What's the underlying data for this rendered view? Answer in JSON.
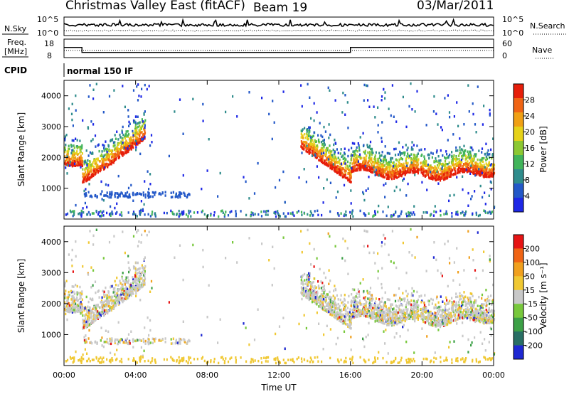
{
  "header": {
    "station": "Christmas Valley East (fitACF)",
    "beam": "Beam 19",
    "date": "03/Mar/2011"
  },
  "chart_data": [
    {
      "type": "line",
      "name": "noise-panel",
      "left_label": "N.Sky",
      "right_label": "N.Search",
      "yticks_left": [
        "10^5",
        "10^0"
      ],
      "yticks_right": [
        "10^5",
        "10^0"
      ],
      "style": "solid-and-dotted"
    },
    {
      "type": "line",
      "name": "freq-nave-panel",
      "left_label_lines": [
        "Freq.",
        "[MHz]"
      ],
      "right_label": "Nave",
      "yticks_left": [
        "18",
        "8"
      ],
      "yticks_right": [
        "60",
        "0"
      ],
      "freq_segments": [
        {
          "t0": 0.0,
          "t1": 1.0,
          "f": 13.5
        },
        {
          "t0": 1.0,
          "t1": 16.0,
          "f": 10.8
        },
        {
          "t0": 16.0,
          "t1": 24.0,
          "f": 13.5
        }
      ]
    },
    {
      "type": "text",
      "name": "cpid-panel",
      "label": "CPID",
      "text": "normal 150 IF"
    },
    {
      "type": "heatmap",
      "name": "power-panel",
      "ylabel": "Slant Range [km]",
      "ylim": [
        0,
        4500
      ],
      "yticks": [
        "1000",
        "2000",
        "3000",
        "4000"
      ],
      "xlim": [
        0,
        24
      ],
      "colorbar_label": "Power [dB]",
      "colorbar_ticks": [
        "28",
        "24",
        "20",
        "16",
        "12",
        "8",
        "4"
      ],
      "colors": [
        "#1e28e6",
        "#2358c8",
        "#2f8c8c",
        "#41b45a",
        "#8cc832",
        "#e6d219",
        "#f0a014",
        "#f06414",
        "#e61e0a"
      ],
      "bands": [
        {
          "t0": 0.0,
          "t1": 1.0,
          "r0": 1750,
          "r1": 1850,
          "shape": "flat"
        },
        {
          "t0": 1.0,
          "t1": 4.5,
          "r0": 1250,
          "r1": 2700,
          "shape": "rise"
        },
        {
          "t0": 13.2,
          "t1": 16.0,
          "r0": 2400,
          "r1": 1250,
          "shape": "fall"
        },
        {
          "t0": 16.0,
          "t1": 24.0,
          "r0": 1500,
          "r1": 1700,
          "shape": "wavy"
        }
      ]
    },
    {
      "type": "heatmap",
      "name": "velocity-panel",
      "ylabel": "Slant Range [km]",
      "ylim": [
        0,
        4500
      ],
      "yticks": [
        "1000",
        "2000",
        "3000",
        "4000"
      ],
      "xlim": [
        0,
        24
      ],
      "xticks": [
        "00:00",
        "04:00",
        "08:00",
        "12:00",
        "16:00",
        "20:00",
        "00:00"
      ],
      "xlabel": "Time UT",
      "colorbar_label": "Velocity [m s⁻¹]",
      "colorbar_ticks": [
        "200",
        "100",
        "50",
        "15",
        "-15",
        "-50",
        "-100",
        "-200"
      ],
      "colors": [
        "#1e28d2",
        "#286e64",
        "#3ca046",
        "#78c83c",
        "#c8c8c8",
        "#f0c832",
        "#f0a01e",
        "#f06414",
        "#e61414"
      ]
    }
  ]
}
